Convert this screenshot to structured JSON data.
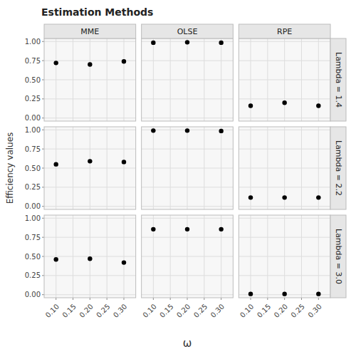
{
  "chart_data": {
    "type": "scatter",
    "title": "Estimation Methods",
    "y_label": "Efficiency values",
    "x_label": "ω",
    "columns": [
      "MME",
      "OLSE",
      "RPE"
    ],
    "rows": [
      "Lambda = 1.4",
      "Lambda = 2.2",
      "Lambda = 3.0"
    ],
    "x": [
      0.1,
      0.2,
      0.3
    ],
    "values": [
      [
        [
          0.72,
          0.7,
          0.74
        ],
        [
          0.985,
          0.99,
          0.985
        ],
        [
          0.16,
          0.2,
          0.16
        ]
      ],
      [
        [
          0.55,
          0.59,
          0.58
        ],
        [
          0.99,
          0.99,
          0.985
        ],
        [
          0.115,
          0.115,
          0.115
        ]
      ],
      [
        [
          0.46,
          0.47,
          0.42
        ],
        [
          0.855,
          0.855,
          0.855
        ],
        [
          0.01,
          0.01,
          0.01
        ]
      ]
    ],
    "color": "#000000",
    "grid": true,
    "xlim": [
      0.065,
      0.335
    ],
    "ylim": [
      -0.04,
      1.04
    ],
    "xticks": [
      {
        "value": 0.1,
        "label": "0.10"
      },
      0.15,
      {
        "value": 0.2,
        "label": "0.20"
      },
      0.25,
      {
        "value": 0.3,
        "label": "0.30"
      }
    ],
    "yticks": [
      {
        "value": 0.0,
        "label": "0.00"
      },
      0.25,
      {
        "value": 0.5,
        "label": "0.50"
      },
      0.75,
      {
        "value": 1.0,
        "label": "1.00"
      }
    ]
  }
}
